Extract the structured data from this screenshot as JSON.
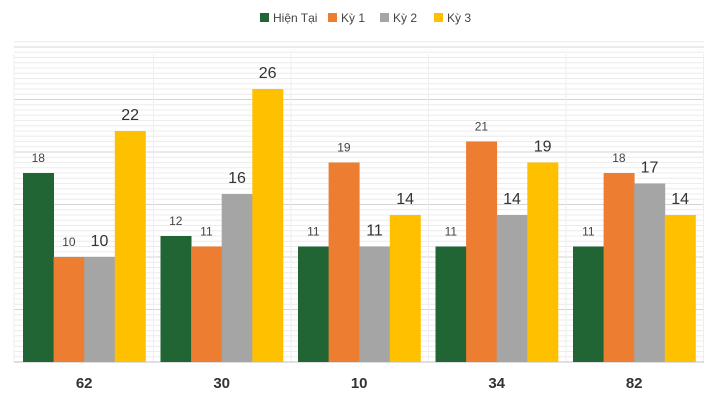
{
  "chart_data": {
    "type": "bar",
    "categories": [
      "62",
      "30",
      "10",
      "34",
      "82"
    ],
    "series": [
      {
        "name": "Hiện Tại",
        "color": "#226535",
        "values": [
          18,
          12,
          11,
          11,
          11
        ]
      },
      {
        "name": "Kỳ 1",
        "color": "#ED7D31",
        "values": [
          10,
          11,
          19,
          21,
          18
        ]
      },
      {
        "name": "Kỳ 2",
        "color": "#A5A5A5",
        "values": [
          10,
          16,
          11,
          14,
          17
        ]
      },
      {
        "name": "Kỳ 3",
        "color": "#FFC000",
        "values": [
          22,
          26,
          14,
          19,
          14
        ]
      }
    ],
    "ylim": [
      0,
      30
    ],
    "grid": true,
    "legend": "top-center",
    "title": "",
    "xlabel": "",
    "ylabel": ""
  }
}
